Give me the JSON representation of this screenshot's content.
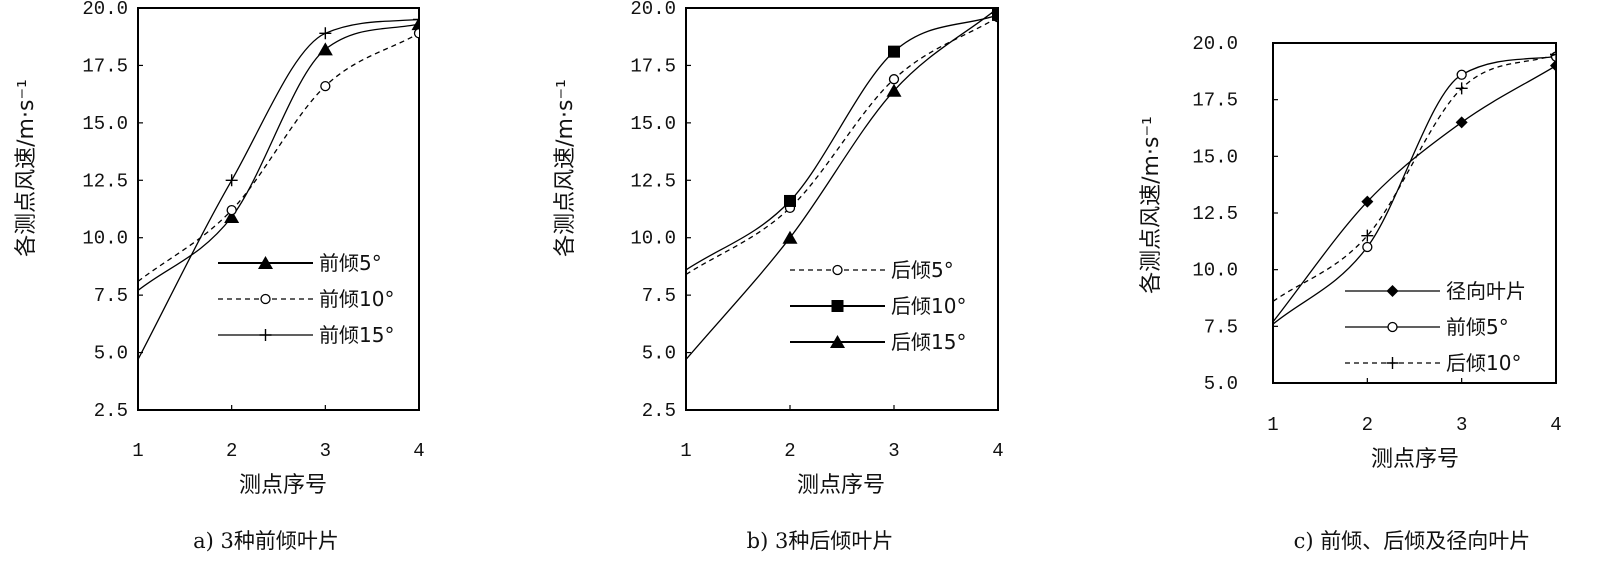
{
  "chart_data": [
    {
      "type": "line",
      "caption": "a) 3种前倾叶片",
      "xlabel": "测点序号",
      "ylabel": "各测点风速/m·s⁻¹",
      "x": [
        1,
        2,
        3,
        4
      ],
      "xlim": [
        1,
        4
      ],
      "ylim": [
        2.5,
        20.0
      ],
      "yticks": [
        "2.5",
        "5.0",
        "7.5",
        "10.0",
        "12.5",
        "15.0",
        "17.5",
        "20.0"
      ],
      "xticks": [
        "1",
        "2",
        "3",
        "4"
      ],
      "grid": false,
      "legend": "right",
      "series": [
        {
          "name": "前倾5°",
          "dash": "solid",
          "marker": "triangle",
          "values": [
            7.7,
            10.9,
            18.2,
            19.3
          ]
        },
        {
          "name": "前倾10°",
          "dash": "dashed",
          "marker": "circle",
          "values": [
            8.1,
            11.2,
            16.6,
            18.9
          ]
        },
        {
          "name": "前倾15°",
          "dash": "solid",
          "marker": "plus",
          "values": [
            4.7,
            12.5,
            18.9,
            19.5
          ]
        }
      ]
    },
    {
      "type": "line",
      "caption": "b) 3种后倾叶片",
      "xlabel": "测点序号",
      "ylabel": "各测点风速/m·s⁻¹",
      "x": [
        1,
        2,
        3,
        4
      ],
      "xlim": [
        1,
        4
      ],
      "ylim": [
        2.5,
        20.0
      ],
      "yticks": [
        "2.5",
        "5.0",
        "7.5",
        "10.0",
        "12.5",
        "15.0",
        "17.5",
        "20.0"
      ],
      "xticks": [
        "1",
        "2",
        "3",
        "4"
      ],
      "grid": false,
      "legend": "right",
      "series": [
        {
          "name": "后倾5°",
          "dash": "dashed",
          "marker": "circle",
          "values": [
            8.4,
            11.3,
            16.9,
            19.6
          ]
        },
        {
          "name": "后倾10°",
          "dash": "solid",
          "marker": "square",
          "values": [
            8.6,
            11.6,
            18.1,
            19.7
          ]
        },
        {
          "name": "后倾15°",
          "dash": "solid",
          "marker": "triangle",
          "values": [
            4.7,
            10.0,
            16.4,
            20.0
          ]
        }
      ]
    },
    {
      "type": "line",
      "caption": "c) 前倾、后倾及径向叶片",
      "xlabel": "测点序号",
      "ylabel": "各测点风速/m·s⁻¹",
      "x": [
        1,
        2,
        3,
        4
      ],
      "xlim": [
        1,
        4
      ],
      "ylim": [
        5.0,
        20.0
      ],
      "yticks": [
        "5.0",
        "7.5",
        "10.0",
        "12.5",
        "15.0",
        "17.5",
        "20.0"
      ],
      "xticks": [
        "1",
        "2",
        "3",
        "4"
      ],
      "grid": false,
      "legend": "right",
      "series": [
        {
          "name": "径向叶片",
          "dash": "solid",
          "marker": "diamond",
          "values": [
            7.7,
            13.0,
            16.5,
            19.0
          ]
        },
        {
          "name": "前倾5°",
          "dash": "solid",
          "marker": "circle",
          "values": [
            7.6,
            11.0,
            18.6,
            19.4
          ]
        },
        {
          "name": "后倾10°",
          "dash": "dashed",
          "marker": "plus",
          "values": [
            8.6,
            11.5,
            18.0,
            19.5
          ]
        }
      ]
    }
  ]
}
